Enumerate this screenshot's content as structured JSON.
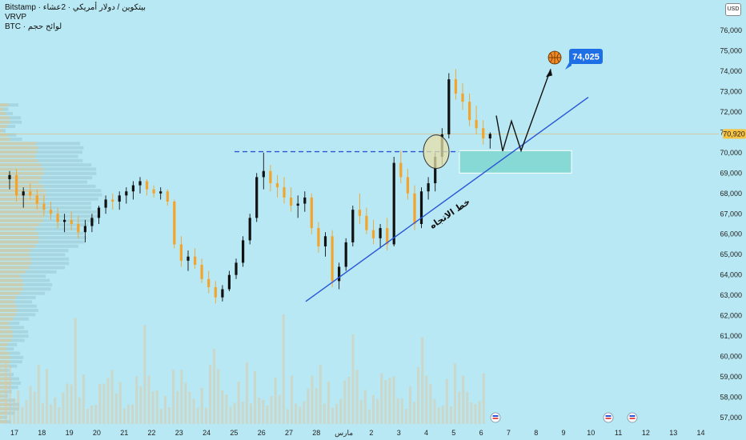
{
  "legend": {
    "symbol_line": "Bitstamp · بيتكوين / دولار أمريكي · 2عشاء",
    "indicator": "VRVP",
    "volume_line": "BTC · لوائح حجم"
  },
  "currency_button": "USD",
  "colors": {
    "background": "#b8e8f3",
    "candle": "#f4a32b",
    "candle_dark": "#111111",
    "trendline": "#2a55d6",
    "zone": "#86d9d4",
    "price_badge": "#1e6fe6",
    "current_price_badge": "#f6c343",
    "volume_bar": "#d9c9a8"
  },
  "chart_data": {
    "type": "candlestick",
    "x_axis_labels": [
      "17",
      "18",
      "19",
      "20",
      "21",
      "22",
      "23",
      "24",
      "25",
      "26",
      "27",
      "28",
      "مارس",
      "2",
      "3",
      "4",
      "5",
      "6",
      "7",
      "8",
      "9",
      "10",
      "11",
      "12",
      "13",
      "14"
    ],
    "y_axis_labels": [
      "76,000",
      "75,000",
      "74,000",
      "73,000",
      "72,000",
      "71,000",
      "70,000",
      "69,000",
      "68,000",
      "67,000",
      "66,000",
      "65,000",
      "64,000",
      "63,000",
      "62,000",
      "61,000",
      "60,000",
      "59,000",
      "58,000",
      "57,000"
    ],
    "ylim": [
      56500,
      76700
    ],
    "current_price_label": "70,920",
    "current_price": 70920,
    "target_label": "74,025",
    "target_price": 74025,
    "resistance_level": 70050,
    "demand_zone": [
      69000,
      70100
    ],
    "trendline_label": "خط الاتجاه",
    "trendline": {
      "start": {
        "x": "26 فبراير",
        "y": 62700
      },
      "end": {
        "x": "8 مارس",
        "y": 72720
      }
    },
    "projection": [
      71820,
      70080,
      71550,
      70100,
      74100
    ],
    "series": [
      {
        "day": 17,
        "ohlc": [
          [
            68700,
            69100,
            68200,
            68900
          ],
          [
            68900,
            69200,
            67600,
            67900
          ],
          [
            67900,
            68300,
            67300,
            68100
          ],
          [
            68100,
            68500,
            67700,
            67900
          ]
        ]
      },
      {
        "day": 18,
        "ohlc": [
          [
            67900,
            68200,
            67200,
            67500
          ],
          [
            67500,
            67900,
            66900,
            67200
          ],
          [
            67200,
            67600,
            66700,
            67000
          ],
          [
            67000,
            67300,
            66300,
            66600
          ]
        ]
      },
      {
        "day": 19,
        "ohlc": [
          [
            66600,
            67000,
            66100,
            66700
          ],
          [
            66700,
            67100,
            66200,
            66500
          ],
          [
            66500,
            66900,
            65800,
            66100
          ],
          [
            66100,
            66700,
            65600,
            66400
          ]
        ]
      },
      {
        "day": 20,
        "ohlc": [
          [
            66400,
            67000,
            66100,
            66800
          ],
          [
            66800,
            67400,
            66500,
            67300
          ],
          [
            67300,
            67900,
            67000,
            67700
          ],
          [
            67700,
            68000,
            67200,
            67600
          ]
        ]
      },
      {
        "day": 21,
        "ohlc": [
          [
            67600,
            68100,
            67200,
            67900
          ],
          [
            67900,
            68300,
            67500,
            68100
          ],
          [
            68100,
            68600,
            67700,
            68400
          ],
          [
            68400,
            68800,
            68000,
            68600
          ]
        ]
      },
      {
        "day": 22,
        "ohlc": [
          [
            68600,
            68700,
            67900,
            68200
          ],
          [
            68200,
            68400,
            67800,
            68000
          ],
          [
            68000,
            68300,
            67700,
            68100
          ],
          [
            68100,
            68200,
            67400,
            67600
          ]
        ]
      },
      {
        "day": 23,
        "ohlc": [
          [
            67600,
            67700,
            65300,
            65500
          ],
          [
            65500,
            65900,
            64400,
            64700
          ],
          [
            64700,
            65200,
            64200,
            64900
          ],
          [
            64900,
            65300,
            64300,
            64500
          ]
        ]
      },
      {
        "day": 24,
        "ohlc": [
          [
            64500,
            64800,
            63600,
            63800
          ],
          [
            63800,
            64200,
            63100,
            63400
          ],
          [
            63400,
            63700,
            62600,
            62900
          ],
          [
            62900,
            63500,
            62700,
            63300
          ]
        ]
      },
      {
        "day": 25,
        "ohlc": [
          [
            63300,
            64200,
            63200,
            64000
          ],
          [
            64000,
            64800,
            63800,
            64600
          ],
          [
            64600,
            65900,
            64400,
            65700
          ],
          [
            65700,
            67000,
            65500,
            66800
          ]
        ]
      },
      {
        "day": 26,
        "ohlc": [
          [
            66800,
            69000,
            66600,
            68800
          ],
          [
            68800,
            70000,
            68200,
            69100
          ],
          [
            69100,
            69400,
            68100,
            68500
          ],
          [
            68500,
            68900,
            67800,
            68300
          ]
        ]
      },
      {
        "day": 27,
        "ohlc": [
          [
            68300,
            68800,
            67500,
            67800
          ],
          [
            67800,
            68300,
            67100,
            67400
          ],
          [
            67400,
            67900,
            66800,
            67500
          ],
          [
            67500,
            68100,
            67100,
            67800
          ]
        ]
      },
      {
        "day": 28,
        "ohlc": [
          [
            67800,
            68000,
            66000,
            66300
          ],
          [
            66300,
            66600,
            65100,
            65400
          ],
          [
            65400,
            66100,
            64900,
            65900
          ],
          [
            65900,
            66200,
            63400,
            63700
          ]
        ]
      },
      {
        "day": "مارس",
        "ohlc": [
          [
            63700,
            64600,
            63300,
            64400
          ],
          [
            64400,
            65800,
            64200,
            65600
          ],
          [
            65600,
            67400,
            65400,
            67200
          ],
          [
            67200,
            68000,
            66500,
            66900
          ]
        ]
      },
      {
        "day": 2,
        "ohlc": [
          [
            66900,
            67300,
            66000,
            66200
          ],
          [
            66200,
            66700,
            65500,
            65800
          ],
          [
            65800,
            66500,
            65300,
            66300
          ],
          [
            66300,
            66800,
            65200,
            65500
          ]
        ]
      },
      {
        "day": 3,
        "ohlc": [
          [
            65500,
            69800,
            65400,
            69500
          ],
          [
            69500,
            70100,
            68500,
            68800
          ],
          [
            68800,
            69200,
            67700,
            68000
          ],
          [
            68000,
            68400,
            66200,
            66500
          ]
        ]
      },
      {
        "day": 4,
        "ohlc": [
          [
            66500,
            68300,
            66300,
            68100
          ],
          [
            68100,
            68800,
            67700,
            68500
          ],
          [
            68500,
            70000,
            68100,
            69800
          ],
          [
            69800,
            71200,
            69400,
            70900
          ]
        ]
      },
      {
        "day": 5,
        "ohlc": [
          [
            70900,
            73900,
            70700,
            73600
          ],
          [
            73600,
            74100,
            72600,
            72900
          ],
          [
            72900,
            73400,
            72100,
            72500
          ],
          [
            72500,
            72900,
            71300,
            71600
          ]
        ]
      },
      {
        "day": 6,
        "ohlc": [
          [
            71600,
            72300,
            70900,
            71200
          ],
          [
            71200,
            71600,
            70400,
            70700
          ],
          [
            70700,
            71000,
            70200,
            70920
          ]
        ]
      }
    ]
  }
}
